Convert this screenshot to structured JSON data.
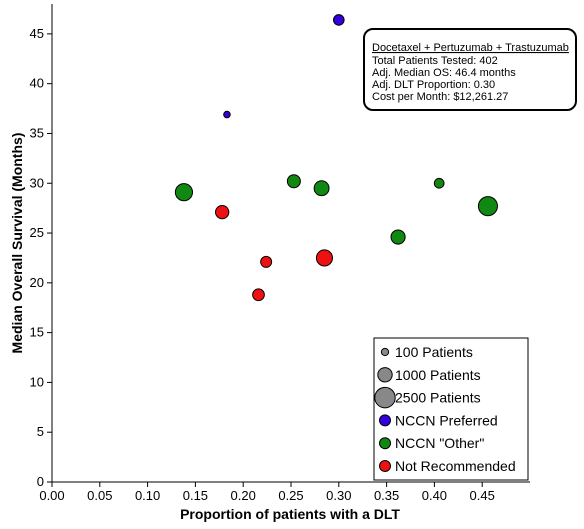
{
  "chart_data": {
    "type": "scatter",
    "xlabel": "Proportion of patients with a DLT",
    "ylabel": "Median Overall Survival (Months)",
    "xlim": [
      0,
      0.5
    ],
    "ylim": [
      0,
      48
    ],
    "xticks": [
      "0.00",
      "0.05",
      "0.10",
      "0.15",
      "0.20",
      "0.25",
      "0.30",
      "0.35",
      "0.40",
      "0.45"
    ],
    "yticks": [
      "0",
      "5",
      "10",
      "15",
      "20",
      "25",
      "30",
      "35",
      "40",
      "45"
    ],
    "grid": false,
    "legend_position": "bottom-right",
    "colors": {
      "NCCN Preferred": "#3300dd",
      "NCCN \"Other\"": "#118811",
      "Not Recommended": "#ee1111",
      "size": "#888888"
    },
    "size_legend": [
      {
        "label": "100 Patients",
        "patients": 100
      },
      {
        "label": "1000 Patients",
        "patients": 1000
      },
      {
        "label": "2500 Patients",
        "patients": 2500
      }
    ],
    "color_legend": [
      {
        "label": "NCCN Preferred",
        "category": "NCCN Preferred"
      },
      {
        "label": "NCCN \"Other\"",
        "category": "NCCN \"Other\""
      },
      {
        "label": "Not Recommended",
        "category": "Not Recommended"
      }
    ],
    "points": [
      {
        "x": 0.3,
        "y": 46.4,
        "patients": 402,
        "category": "NCCN Preferred"
      },
      {
        "x": 0.183,
        "y": 36.9,
        "patients": 60,
        "category": "NCCN Preferred"
      },
      {
        "x": 0.138,
        "y": 29.1,
        "patients": 1600,
        "category": "NCCN \"Other\""
      },
      {
        "x": 0.253,
        "y": 30.2,
        "patients": 750,
        "category": "NCCN \"Other\""
      },
      {
        "x": 0.282,
        "y": 29.5,
        "patients": 1100,
        "category": "NCCN \"Other\""
      },
      {
        "x": 0.405,
        "y": 30.0,
        "patients": 300,
        "category": "NCCN \"Other\""
      },
      {
        "x": 0.456,
        "y": 27.7,
        "patients": 2100,
        "category": "NCCN \"Other\""
      },
      {
        "x": 0.362,
        "y": 24.6,
        "patients": 950,
        "category": "NCCN \"Other\""
      },
      {
        "x": 0.178,
        "y": 27.1,
        "patients": 800,
        "category": "Not Recommended"
      },
      {
        "x": 0.224,
        "y": 22.1,
        "patients": 450,
        "category": "Not Recommended"
      },
      {
        "x": 0.216,
        "y": 18.8,
        "patients": 550,
        "category": "Not Recommended"
      },
      {
        "x": 0.285,
        "y": 22.5,
        "patients": 1350,
        "category": "Not Recommended"
      }
    ],
    "tooltip": {
      "title": "Docetaxel + Pertuzumab + Trastuzumab",
      "lines": [
        "Total Patients Tested: 402",
        "Adj. Median OS: 46.4 months",
        "Adj. DLT Proportion: 0.30",
        "Cost per Month: $12,261.27"
      ]
    }
  }
}
